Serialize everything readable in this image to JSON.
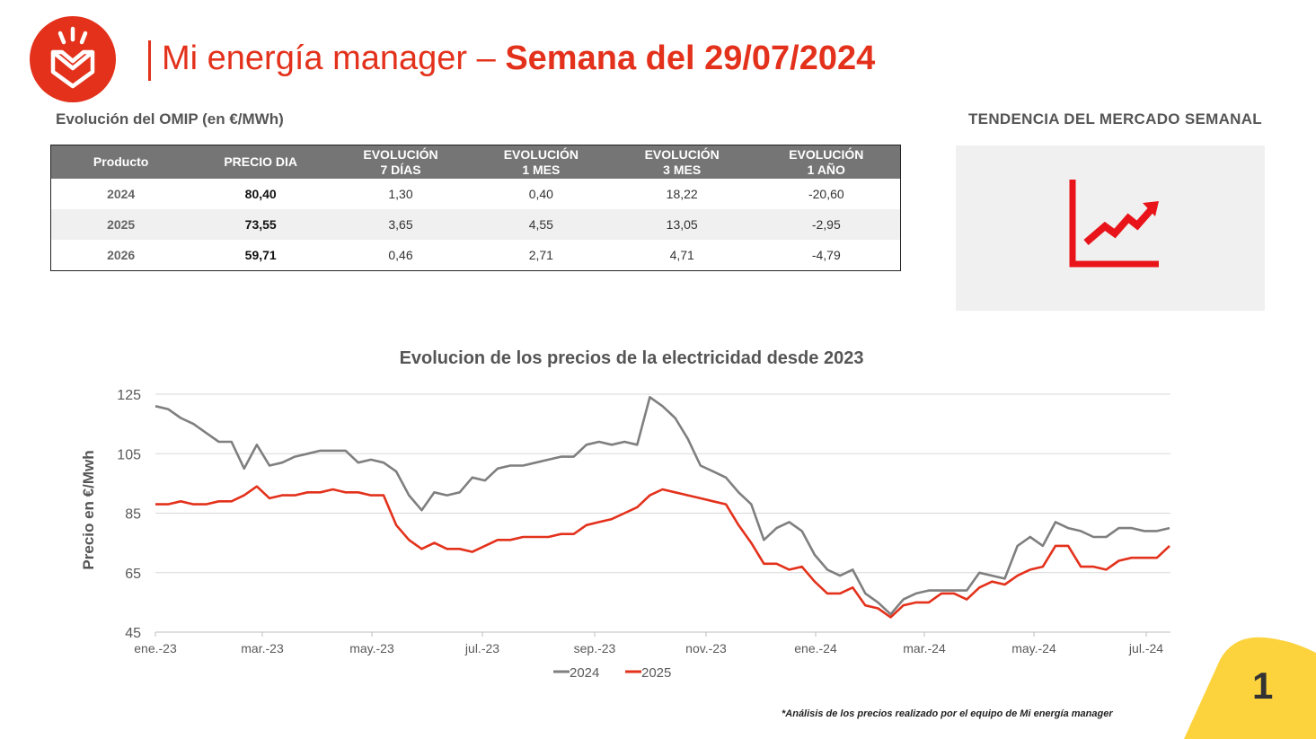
{
  "header": {
    "title_light": "Mi energía manager – ",
    "title_bold": "Semana del 29/07/2024"
  },
  "omip": {
    "label": "Evolución del OMIP (en €/MWh)",
    "columns": [
      {
        "line1": "Producto",
        "line2": ""
      },
      {
        "line1": "PRECIO DIA",
        "line2": ""
      },
      {
        "line1": "EVOLUCIÓN",
        "line2": "7 DÍAS"
      },
      {
        "line1": "EVOLUCIÓN",
        "line2": "1 MES"
      },
      {
        "line1": "EVOLUCIÓN",
        "line2": "3 MES"
      },
      {
        "line1": "EVOLUCIÓN",
        "line2": "1 AÑO"
      }
    ],
    "rows": [
      {
        "product": "2024",
        "price": "80,40",
        "d7": "1,30",
        "m1": "0,40",
        "m3": "18,22",
        "y1": "-20,60"
      },
      {
        "product": "2025",
        "price": "73,55",
        "d7": "3,65",
        "m1": "4,55",
        "m3": "13,05",
        "y1": "-2,95"
      },
      {
        "product": "2026",
        "price": "59,71",
        "d7": "0,46",
        "m1": "2,71",
        "m3": "4,71",
        "y1": "-4,79"
      }
    ]
  },
  "trend": {
    "label": "TENDENCIA DEL MERCADO SEMANAL",
    "icon": "trending-up-chart-icon"
  },
  "chart_data": {
    "type": "line",
    "title": "Evolucion de los precios de la electricidad desde 2023",
    "xlabel": "",
    "ylabel": "Precio en €/Mwh",
    "ylim": [
      45,
      125
    ],
    "yticks": [
      45,
      65,
      85,
      105,
      125
    ],
    "xticks": [
      "ene.-23",
      "mar.-23",
      "may.-23",
      "jul.-23",
      "sep.-23",
      "nov.-23",
      "ene.-24",
      "mar.-24",
      "may.-24",
      "jul.-24"
    ],
    "grid": true,
    "legend": "bottom",
    "series": [
      {
        "name": "2024",
        "color": "#7f7f7f",
        "values": [
          121,
          120,
          117,
          115,
          112,
          109,
          109,
          100,
          108,
          101,
          102,
          104,
          105,
          106,
          106,
          106,
          102,
          103,
          102,
          99,
          91,
          86,
          92,
          91,
          92,
          97,
          96,
          100,
          101,
          101,
          102,
          103,
          104,
          104,
          108,
          109,
          108,
          109,
          108,
          124,
          121,
          117,
          110,
          101,
          99,
          97,
          92,
          88,
          76,
          80,
          82,
          79,
          71,
          66,
          64,
          66,
          58,
          55,
          51,
          56,
          58,
          59,
          59,
          59,
          59,
          65,
          64,
          63,
          74,
          77,
          74,
          82,
          80,
          79,
          77,
          77,
          80,
          80,
          79,
          79,
          80
        ]
      },
      {
        "name": "2025",
        "color": "#e3311b",
        "values": [
          88,
          88,
          89,
          88,
          88,
          89,
          89,
          91,
          94,
          90,
          91,
          91,
          92,
          92,
          93,
          92,
          92,
          91,
          91,
          81,
          76,
          73,
          75,
          73,
          73,
          72,
          74,
          76,
          76,
          77,
          77,
          77,
          78,
          78,
          81,
          82,
          83,
          85,
          87,
          91,
          93,
          92,
          91,
          90,
          89,
          88,
          81,
          75,
          68,
          68,
          66,
          67,
          62,
          58,
          58,
          60,
          54,
          53,
          50,
          54,
          55,
          55,
          58,
          58,
          56,
          60,
          62,
          61,
          64,
          66,
          67,
          74,
          74,
          67,
          67,
          66,
          69,
          70,
          70,
          70,
          74
        ]
      }
    ]
  },
  "footnote": "*Análisis de los precios realizado por el equipo de Mi energía manager",
  "page_number": "1"
}
